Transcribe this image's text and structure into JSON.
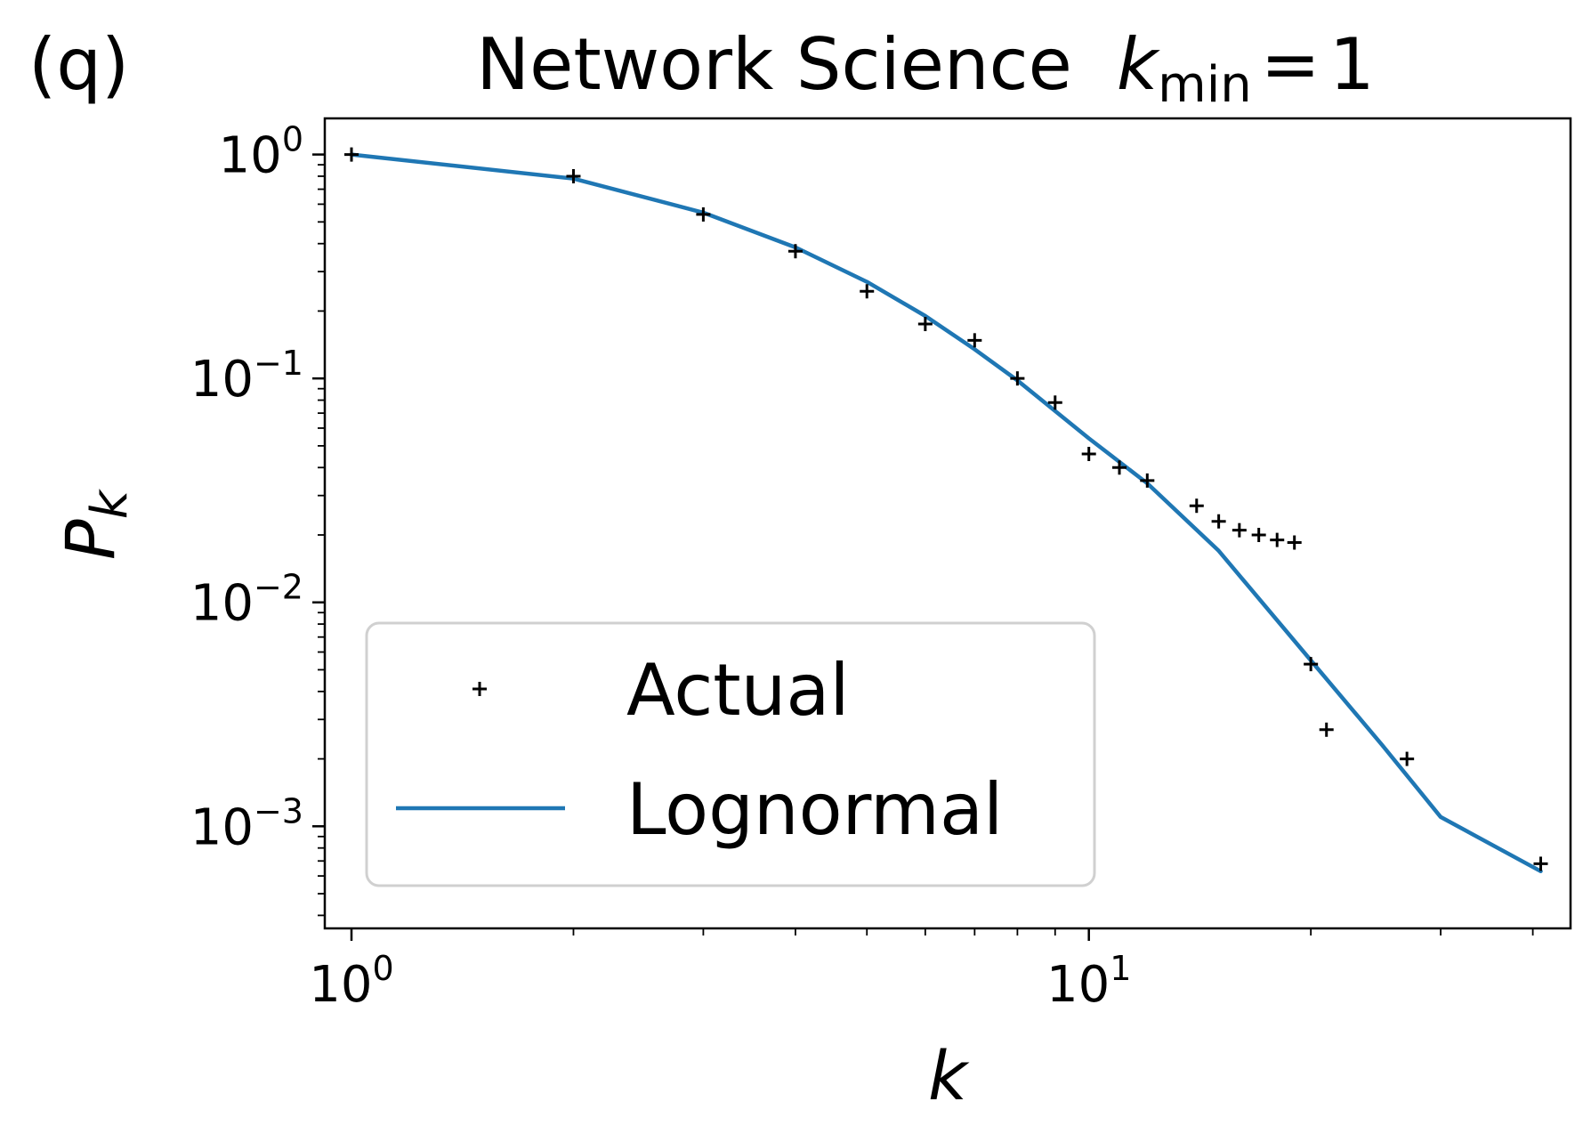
{
  "panel_label": "(q)",
  "title": {
    "text": "Network Science",
    "variable": "k",
    "subscript": "min",
    "equals": "=",
    "value": "1"
  },
  "chart_data": {
    "type": "scatter",
    "xscale": "log",
    "yscale": "log",
    "xlabel": "k",
    "ylabel": {
      "base": "P",
      "subscript": "k"
    },
    "xlim": [
      0.92,
      45
    ],
    "ylim": [
      0.00035,
      1.45
    ],
    "xticks": [
      {
        "value": 1,
        "base": "10",
        "exp": "0"
      },
      {
        "value": 10,
        "base": "10",
        "exp": "1"
      }
    ],
    "yticks": [
      {
        "value": 1,
        "base": "10",
        "exp": "0"
      },
      {
        "value": 0.1,
        "base": "10",
        "exp": "−1"
      },
      {
        "value": 0.01,
        "base": "10",
        "exp": "−2"
      },
      {
        "value": 0.001,
        "base": "10",
        "exp": "−3"
      }
    ],
    "legend_position": "lower-left",
    "series": [
      {
        "name": "Actual",
        "kind": "marker",
        "marker": "+",
        "color": "#000000",
        "x": [
          1,
          2,
          3,
          4,
          5,
          6,
          7,
          8,
          9,
          10,
          11,
          12,
          14,
          15,
          16,
          17,
          18,
          19,
          20,
          21,
          27,
          41
        ],
        "y": [
          1.0,
          0.8,
          0.54,
          0.37,
          0.245,
          0.175,
          0.148,
          0.1,
          0.078,
          0.046,
          0.04,
          0.035,
          0.027,
          0.023,
          0.021,
          0.02,
          0.019,
          0.0185,
          0.0053,
          0.0027,
          0.002,
          0.00068
        ]
      },
      {
        "name": "Lognormal",
        "kind": "line",
        "color": "#1f77b4",
        "x": [
          1,
          2,
          3,
          4,
          5,
          6,
          7,
          8,
          10,
          12,
          15,
          20,
          25,
          30,
          41
        ],
        "y": [
          1.0,
          0.78,
          0.55,
          0.385,
          0.27,
          0.19,
          0.135,
          0.098,
          0.054,
          0.034,
          0.017,
          0.0055,
          0.0023,
          0.0011,
          0.00063
        ]
      }
    ]
  }
}
